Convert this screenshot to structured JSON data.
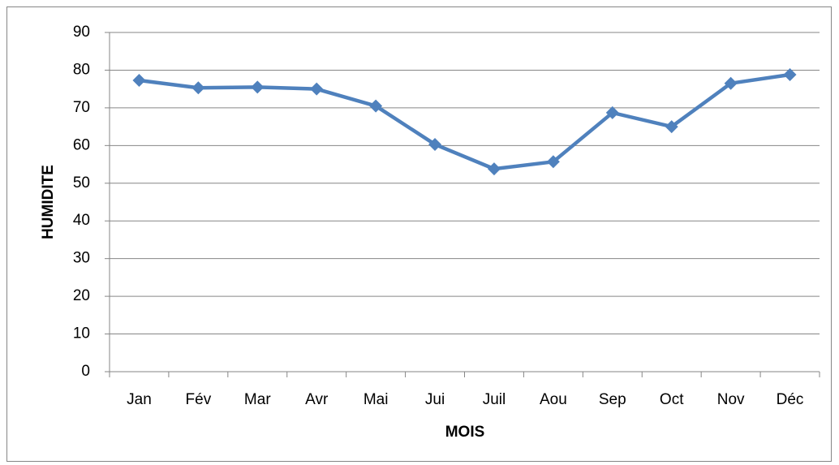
{
  "chart_data": {
    "type": "line",
    "categories": [
      "Jan",
      "Fév",
      "Mar",
      "Avr",
      "Mai",
      "Jui",
      "Juil",
      "Aou",
      "Sep",
      "Oct",
      "Nov",
      "Déc"
    ],
    "series": [
      {
        "name": "HUMIDITE",
        "color": "#4f81bd",
        "values": [
          77.3,
          75.3,
          75.5,
          75,
          70.5,
          60.3,
          53.8,
          55.7,
          68.7,
          65,
          76.5,
          78.8
        ]
      }
    ],
    "xlabel": "MOIS",
    "ylabel": "HUMIDITE",
    "ylim": [
      0,
      90
    ],
    "yticks": [
      0,
      10,
      20,
      30,
      40,
      50,
      60,
      70,
      80,
      90
    ],
    "grid": true,
    "legend": false
  }
}
